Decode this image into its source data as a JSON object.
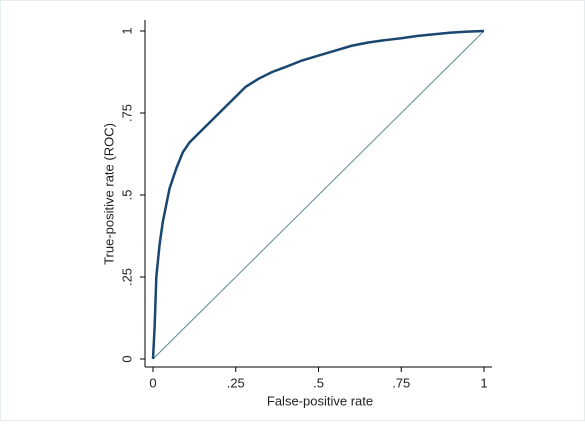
{
  "chart_data": {
    "type": "line",
    "xlabel": "False-positive rate",
    "ylabel": "True-positive rate (ROC)",
    "xlim": [
      0,
      1
    ],
    "ylim": [
      0,
      1
    ],
    "xticks": [
      0,
      {
        "value": 0.25,
        "label": ".25"
      },
      {
        "value": 0.5,
        "label": ".5"
      },
      {
        "value": 0.75,
        "label": ".75"
      },
      1
    ],
    "yticks": [
      0,
      {
        "value": 0.25,
        "label": ".25"
      },
      {
        "value": 0.5,
        "label": ".5"
      },
      {
        "value": 0.75,
        "label": ".75"
      },
      1
    ],
    "series": [
      {
        "color": "#1a476f",
        "x": [
          0,
          0.005,
          0.01,
          0.02,
          0.03,
          0.04,
          0.05,
          0.07,
          0.09,
          0.11,
          0.15,
          0.2,
          0.25,
          0.28,
          0.32,
          0.36,
          0.4,
          0.45,
          0.5,
          0.55,
          0.6,
          0.65,
          0.7,
          0.75,
          0.8,
          0.85,
          0.9,
          0.95,
          1
        ],
        "values": [
          0,
          0.1,
          0.25,
          0.35,
          0.42,
          0.47,
          0.52,
          0.58,
          0.63,
          0.66,
          0.7,
          0.75,
          0.8,
          0.83,
          0.855,
          0.875,
          0.89,
          0.91,
          0.925,
          0.94,
          0.955,
          0.965,
          0.972,
          0.978,
          0.985,
          0.99,
          0.995,
          0.998,
          1
        ]
      },
      {
        "color": "#5a8a8e",
        "x": [
          0,
          1
        ],
        "values": [
          0,
          1
        ]
      }
    ]
  }
}
